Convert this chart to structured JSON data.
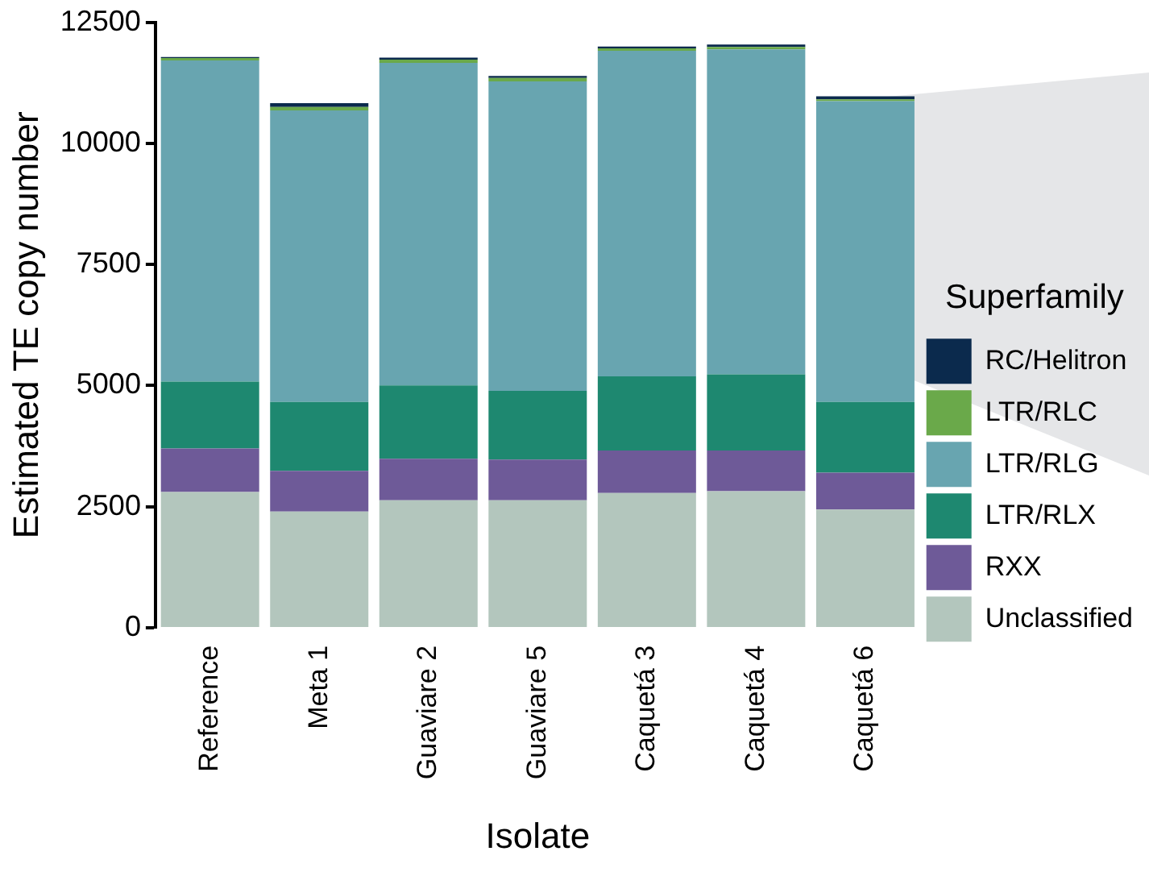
{
  "chart_data": {
    "type": "bar",
    "stacked": true,
    "xlabel": "Isolate",
    "ylabel": "Estimated TE copy number",
    "legend_title": "Superfamily",
    "legend": "right",
    "categories": [
      "Reference",
      "Meta 1",
      "Guaviare 2",
      "Guaviare 5",
      "Caquetá 3",
      "Caquetá 4",
      "Caquetá 6"
    ],
    "ylim": [
      0,
      12500
    ],
    "yticks": [
      0,
      2500,
      5000,
      7500,
      10000,
      12500
    ],
    "series": [
      {
        "name": "Unclassified",
        "color": "#b3c6bd",
        "values": [
          2800,
          2400,
          2630,
          2630,
          2780,
          2820,
          2440
        ]
      },
      {
        "name": "RXX",
        "color": "#6e5a98",
        "values": [
          900,
          840,
          860,
          840,
          880,
          840,
          760
        ]
      },
      {
        "name": "LTR/RLX",
        "color": "#1e8870",
        "values": [
          1380,
          1420,
          1510,
          1420,
          1530,
          1570,
          1460
        ]
      },
      {
        "name": "LTR/RLG",
        "color": "#68a5b0",
        "values": [
          6630,
          6020,
          6660,
          6390,
          6720,
          6710,
          6210
        ]
      },
      {
        "name": "LTR/RLC",
        "color": "#6aa94a",
        "values": [
          50,
          70,
          70,
          70,
          50,
          50,
          40
        ]
      },
      {
        "name": "RC/Helitron",
        "color": "#0b2a4d",
        "values": [
          20,
          80,
          40,
          40,
          40,
          50,
          60
        ]
      }
    ]
  }
}
